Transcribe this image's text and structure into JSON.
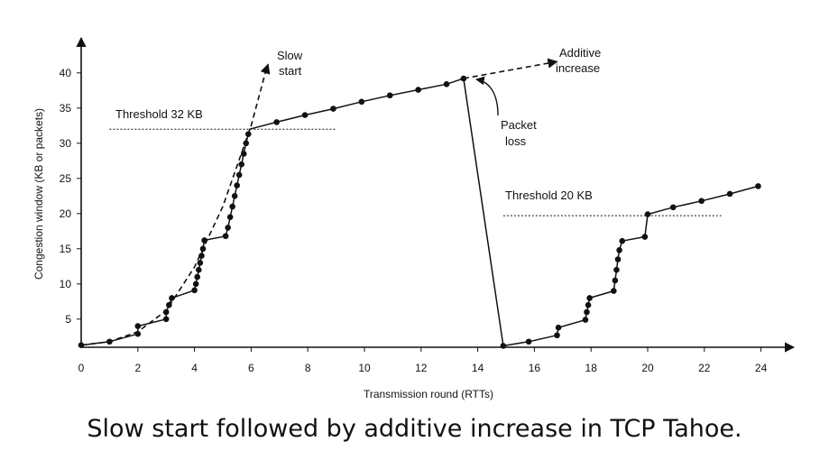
{
  "chart_data": {
    "type": "line",
    "xlabel": "Transmission round (RTTs)",
    "ylabel": "Congestion window  (KB or packets)",
    "xlim": [
      0,
      25
    ],
    "ylim": [
      1,
      42
    ],
    "x_ticks": [
      "0",
      "2",
      "4",
      "6",
      "8",
      "10",
      "12",
      "14",
      "16",
      "18",
      "20",
      "22",
      "24"
    ],
    "y_ticks": [
      "5",
      "10",
      "15",
      "20",
      "25",
      "30",
      "35",
      "40"
    ],
    "grid": false,
    "series": [
      {
        "values_xy": [
          [
            0,
            1.3
          ],
          [
            1,
            1.8
          ],
          [
            2,
            2.9
          ],
          [
            2,
            4
          ],
          [
            3,
            5
          ],
          [
            3,
            6
          ],
          [
            3.1,
            7
          ],
          [
            3.2,
            8
          ],
          [
            4,
            9.1
          ],
          [
            4.05,
            10
          ],
          [
            4.1,
            11
          ],
          [
            4.15,
            12
          ],
          [
            4.2,
            13
          ],
          [
            4.25,
            14
          ],
          [
            4.3,
            15
          ],
          [
            4.35,
            16.2
          ],
          [
            5.1,
            16.8
          ],
          [
            5.18,
            18
          ],
          [
            5.26,
            19.5
          ],
          [
            5.34,
            21
          ],
          [
            5.42,
            22.5
          ],
          [
            5.5,
            24
          ],
          [
            5.58,
            25.5
          ],
          [
            5.66,
            27
          ],
          [
            5.74,
            28.5
          ],
          [
            5.82,
            30
          ],
          [
            5.9,
            31.3
          ],
          [
            5.95,
            32
          ],
          [
            6.9,
            33
          ],
          [
            7.9,
            34
          ],
          [
            8.9,
            34.9
          ],
          [
            9.9,
            35.9
          ],
          [
            10.9,
            36.8
          ],
          [
            11.9,
            37.6
          ],
          [
            12.9,
            38.4
          ],
          [
            13.5,
            39.2
          ],
          [
            14.9,
            1.2
          ],
          [
            15.8,
            1.8
          ],
          [
            16.8,
            2.7
          ],
          [
            16.85,
            3.8
          ],
          [
            17.8,
            4.9
          ],
          [
            17.85,
            6
          ],
          [
            17.9,
            7
          ],
          [
            17.95,
            8
          ],
          [
            18.8,
            9
          ],
          [
            18.85,
            10.5
          ],
          [
            18.9,
            12
          ],
          [
            18.95,
            13.5
          ],
          [
            19,
            14.8
          ],
          [
            19.1,
            16.1
          ],
          [
            19.9,
            16.7
          ],
          [
            20,
            19.9
          ],
          [
            20.9,
            20.9
          ],
          [
            21.9,
            21.8
          ],
          [
            22.9,
            22.8
          ],
          [
            23.9,
            23.9
          ]
        ],
        "markers_xy": [
          [
            0,
            1.3
          ],
          [
            1,
            1.8
          ],
          [
            2,
            2.9
          ],
          [
            2,
            4
          ],
          [
            3,
            5
          ],
          [
            3,
            6
          ],
          [
            3.1,
            7
          ],
          [
            3.2,
            8
          ],
          [
            4,
            9.1
          ],
          [
            4.05,
            10
          ],
          [
            4.1,
            11
          ],
          [
            4.15,
            12
          ],
          [
            4.2,
            13
          ],
          [
            4.25,
            14
          ],
          [
            4.3,
            15
          ],
          [
            4.35,
            16.2
          ],
          [
            5.1,
            16.8
          ],
          [
            5.18,
            18
          ],
          [
            5.26,
            19.5
          ],
          [
            5.34,
            21
          ],
          [
            5.42,
            22.5
          ],
          [
            5.5,
            24
          ],
          [
            5.58,
            25.5
          ],
          [
            5.66,
            27
          ],
          [
            5.74,
            28.5
          ],
          [
            5.82,
            30
          ],
          [
            5.9,
            31.3
          ],
          [
            6.9,
            33
          ],
          [
            7.9,
            34
          ],
          [
            8.9,
            34.9
          ],
          [
            9.9,
            35.9
          ],
          [
            10.9,
            36.8
          ],
          [
            11.9,
            37.6
          ],
          [
            12.9,
            38.4
          ],
          [
            13.5,
            39.2
          ],
          [
            14.9,
            1.2
          ],
          [
            15.8,
            1.8
          ],
          [
            16.8,
            2.7
          ],
          [
            16.85,
            3.8
          ],
          [
            17.8,
            4.9
          ],
          [
            17.85,
            6
          ],
          [
            17.9,
            7
          ],
          [
            17.95,
            8
          ],
          [
            18.8,
            9
          ],
          [
            18.85,
            10.5
          ],
          [
            18.9,
            12
          ],
          [
            18.95,
            13.5
          ],
          [
            19,
            14.8
          ],
          [
            19.1,
            16.1
          ],
          [
            19.9,
            16.7
          ],
          [
            20,
            19.9
          ],
          [
            20.9,
            20.9
          ],
          [
            21.9,
            21.8
          ],
          [
            22.9,
            22.8
          ],
          [
            23.9,
            23.9
          ]
        ]
      }
    ],
    "slow_start_curve_xy": [
      [
        0,
        1.3
      ],
      [
        1,
        1.8
      ],
      [
        2,
        3.2
      ],
      [
        3,
        6.2
      ],
      [
        4,
        12.4
      ],
      [
        5,
        21
      ],
      [
        6,
        32.5
      ],
      [
        6.5,
        40
      ],
      [
        6.6,
        41.2
      ]
    ],
    "additive_increase_ext_xy": [
      [
        13.5,
        39.2
      ],
      [
        16.8,
        41.6
      ]
    ],
    "threshold_lines": [
      {
        "label": "Threshold 32 KB",
        "y": 32,
        "x_range": [
          1,
          9
        ]
      },
      {
        "label": "Threshold 20 KB",
        "y": 19.7,
        "x_range": [
          14.9,
          22.6
        ]
      }
    ],
    "annotations": {
      "slow_start_l1": "Slow",
      "slow_start_l2": "start",
      "additive_l1": "Additive",
      "additive_l2": "increase",
      "packet_loss_l1": "Packet",
      "packet_loss_l2": "loss"
    },
    "caption": "Slow start followed by additive increase in TCP Tahoe."
  }
}
